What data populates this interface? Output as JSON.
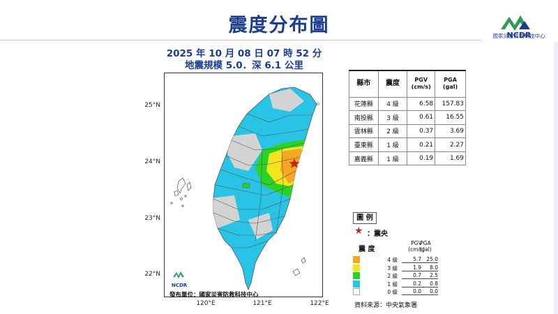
{
  "header": {
    "title": "震度分布圖",
    "logo_text": "NCDR",
    "logo_subtitle": "國家災害防救科技中心"
  },
  "subtitle": {
    "line1": "2025 年 10 月 08 日 07 時 52 分",
    "line2": "地震規模 5.0．深 6.1 公里"
  },
  "map": {
    "lat_labels": [
      "25°N",
      "24°N",
      "23°N",
      "22°N"
    ],
    "lon_labels": [
      "120°E",
      "121°E",
      "122°E"
    ],
    "publisher": "發布單位：國家災害防救科技中心",
    "logo_text": "NCDR",
    "colors": {
      "level4": "#f5a623",
      "level3": "#f2e51c",
      "level2": "#2bd424",
      "level1": "#29c3e6",
      "level0": "#d3d3d3",
      "epicenter": "#c0272d"
    }
  },
  "table": {
    "headers": {
      "county": "縣市",
      "intensity": "震度",
      "pgv": "PGV\n(cm/s)",
      "pga": "PGA\n(gal)"
    },
    "rows": [
      {
        "county": "花蓮縣",
        "intensity": "4 級",
        "pgv": "6.58",
        "pga": "157.83"
      },
      {
        "county": "南投縣",
        "intensity": "3 級",
        "pgv": "0.61",
        "pga": "16.55"
      },
      {
        "county": "雲林縣",
        "intensity": "2 級",
        "pgv": "0.37",
        "pga": "3.69"
      },
      {
        "county": "臺東縣",
        "intensity": "1 級",
        "pgv": "0.21",
        "pga": "2.27"
      },
      {
        "county": "嘉義縣",
        "intensity": "1 級",
        "pgv": "0.19",
        "pga": "1.69"
      }
    ]
  },
  "legend": {
    "title": "圖 例",
    "epicenter_icon": "star-icon",
    "epicenter_label": "：震央",
    "header_intensity": "震 度",
    "header_pgv": "PGV\n(cm/s)",
    "header_pga": "PGA\n(gal)",
    "rows": [
      {
        "level": "4 級",
        "pgv": "5.7",
        "pga": "25.0",
        "color": "#f5a623"
      },
      {
        "level": "3 級",
        "pgv": "1.9",
        "pga": "8.0",
        "color": "#f2e51c"
      },
      {
        "level": "2 級",
        "pgv": "0.7",
        "pga": "2.5",
        "color": "#2bd424"
      },
      {
        "level": "1 級",
        "pgv": "0.2",
        "pga": "0.8",
        "color": "#29c3e6"
      },
      {
        "level": "0 級",
        "pgv": "0.0",
        "pga": "0.0",
        "color": "#ffffff"
      }
    ]
  },
  "source": "資料來源：中央氣象署"
}
